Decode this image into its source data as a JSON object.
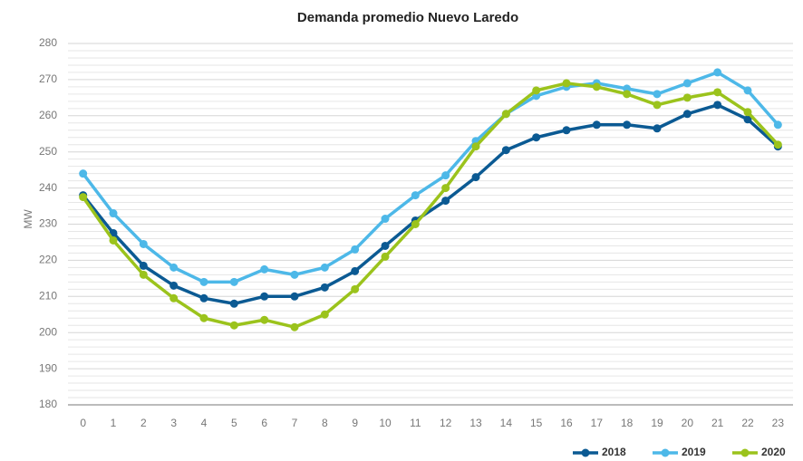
{
  "chart_data": {
    "type": "line",
    "title": "Demanda promedio Nuevo Laredo",
    "ylabel": "MW",
    "categories": [
      "0",
      "1",
      "2",
      "3",
      "4",
      "5",
      "6",
      "7",
      "8",
      "9",
      "10",
      "11",
      "12",
      "13",
      "14",
      "15",
      "16",
      "17",
      "18",
      "19",
      "20",
      "21",
      "22",
      "23"
    ],
    "series": [
      {
        "name": "2018",
        "color": "#0b5a93",
        "values": [
          238,
          227.5,
          218.5,
          213,
          209.5,
          208,
          210,
          210,
          212.5,
          217,
          224,
          231,
          236.5,
          243,
          250.5,
          254,
          256,
          257.5,
          257.5,
          256.5,
          260.5,
          263,
          259,
          251.5
        ]
      },
      {
        "name": "2019",
        "color": "#4db8e8",
        "values": [
          244,
          233,
          224.5,
          218,
          214,
          214,
          217.5,
          216,
          218,
          223,
          231.5,
          238,
          243.5,
          253,
          260.5,
          265.5,
          268,
          269,
          267.5,
          266,
          269,
          272,
          267,
          257.5
        ]
      },
      {
        "name": "2020",
        "color": "#9bc31c",
        "values": [
          237.5,
          225.5,
          216,
          209.5,
          204,
          202,
          203.5,
          201.5,
          205,
          212,
          221,
          230,
          240,
          251.5,
          260.5,
          267,
          269,
          268,
          266,
          263,
          265,
          266.5,
          261,
          252
        ]
      }
    ],
    "ylim": [
      180,
      280
    ],
    "yticks": [
      180,
      190,
      200,
      210,
      220,
      230,
      240,
      250,
      260,
      270,
      280
    ],
    "grid": true,
    "legend": "bottom-right"
  }
}
